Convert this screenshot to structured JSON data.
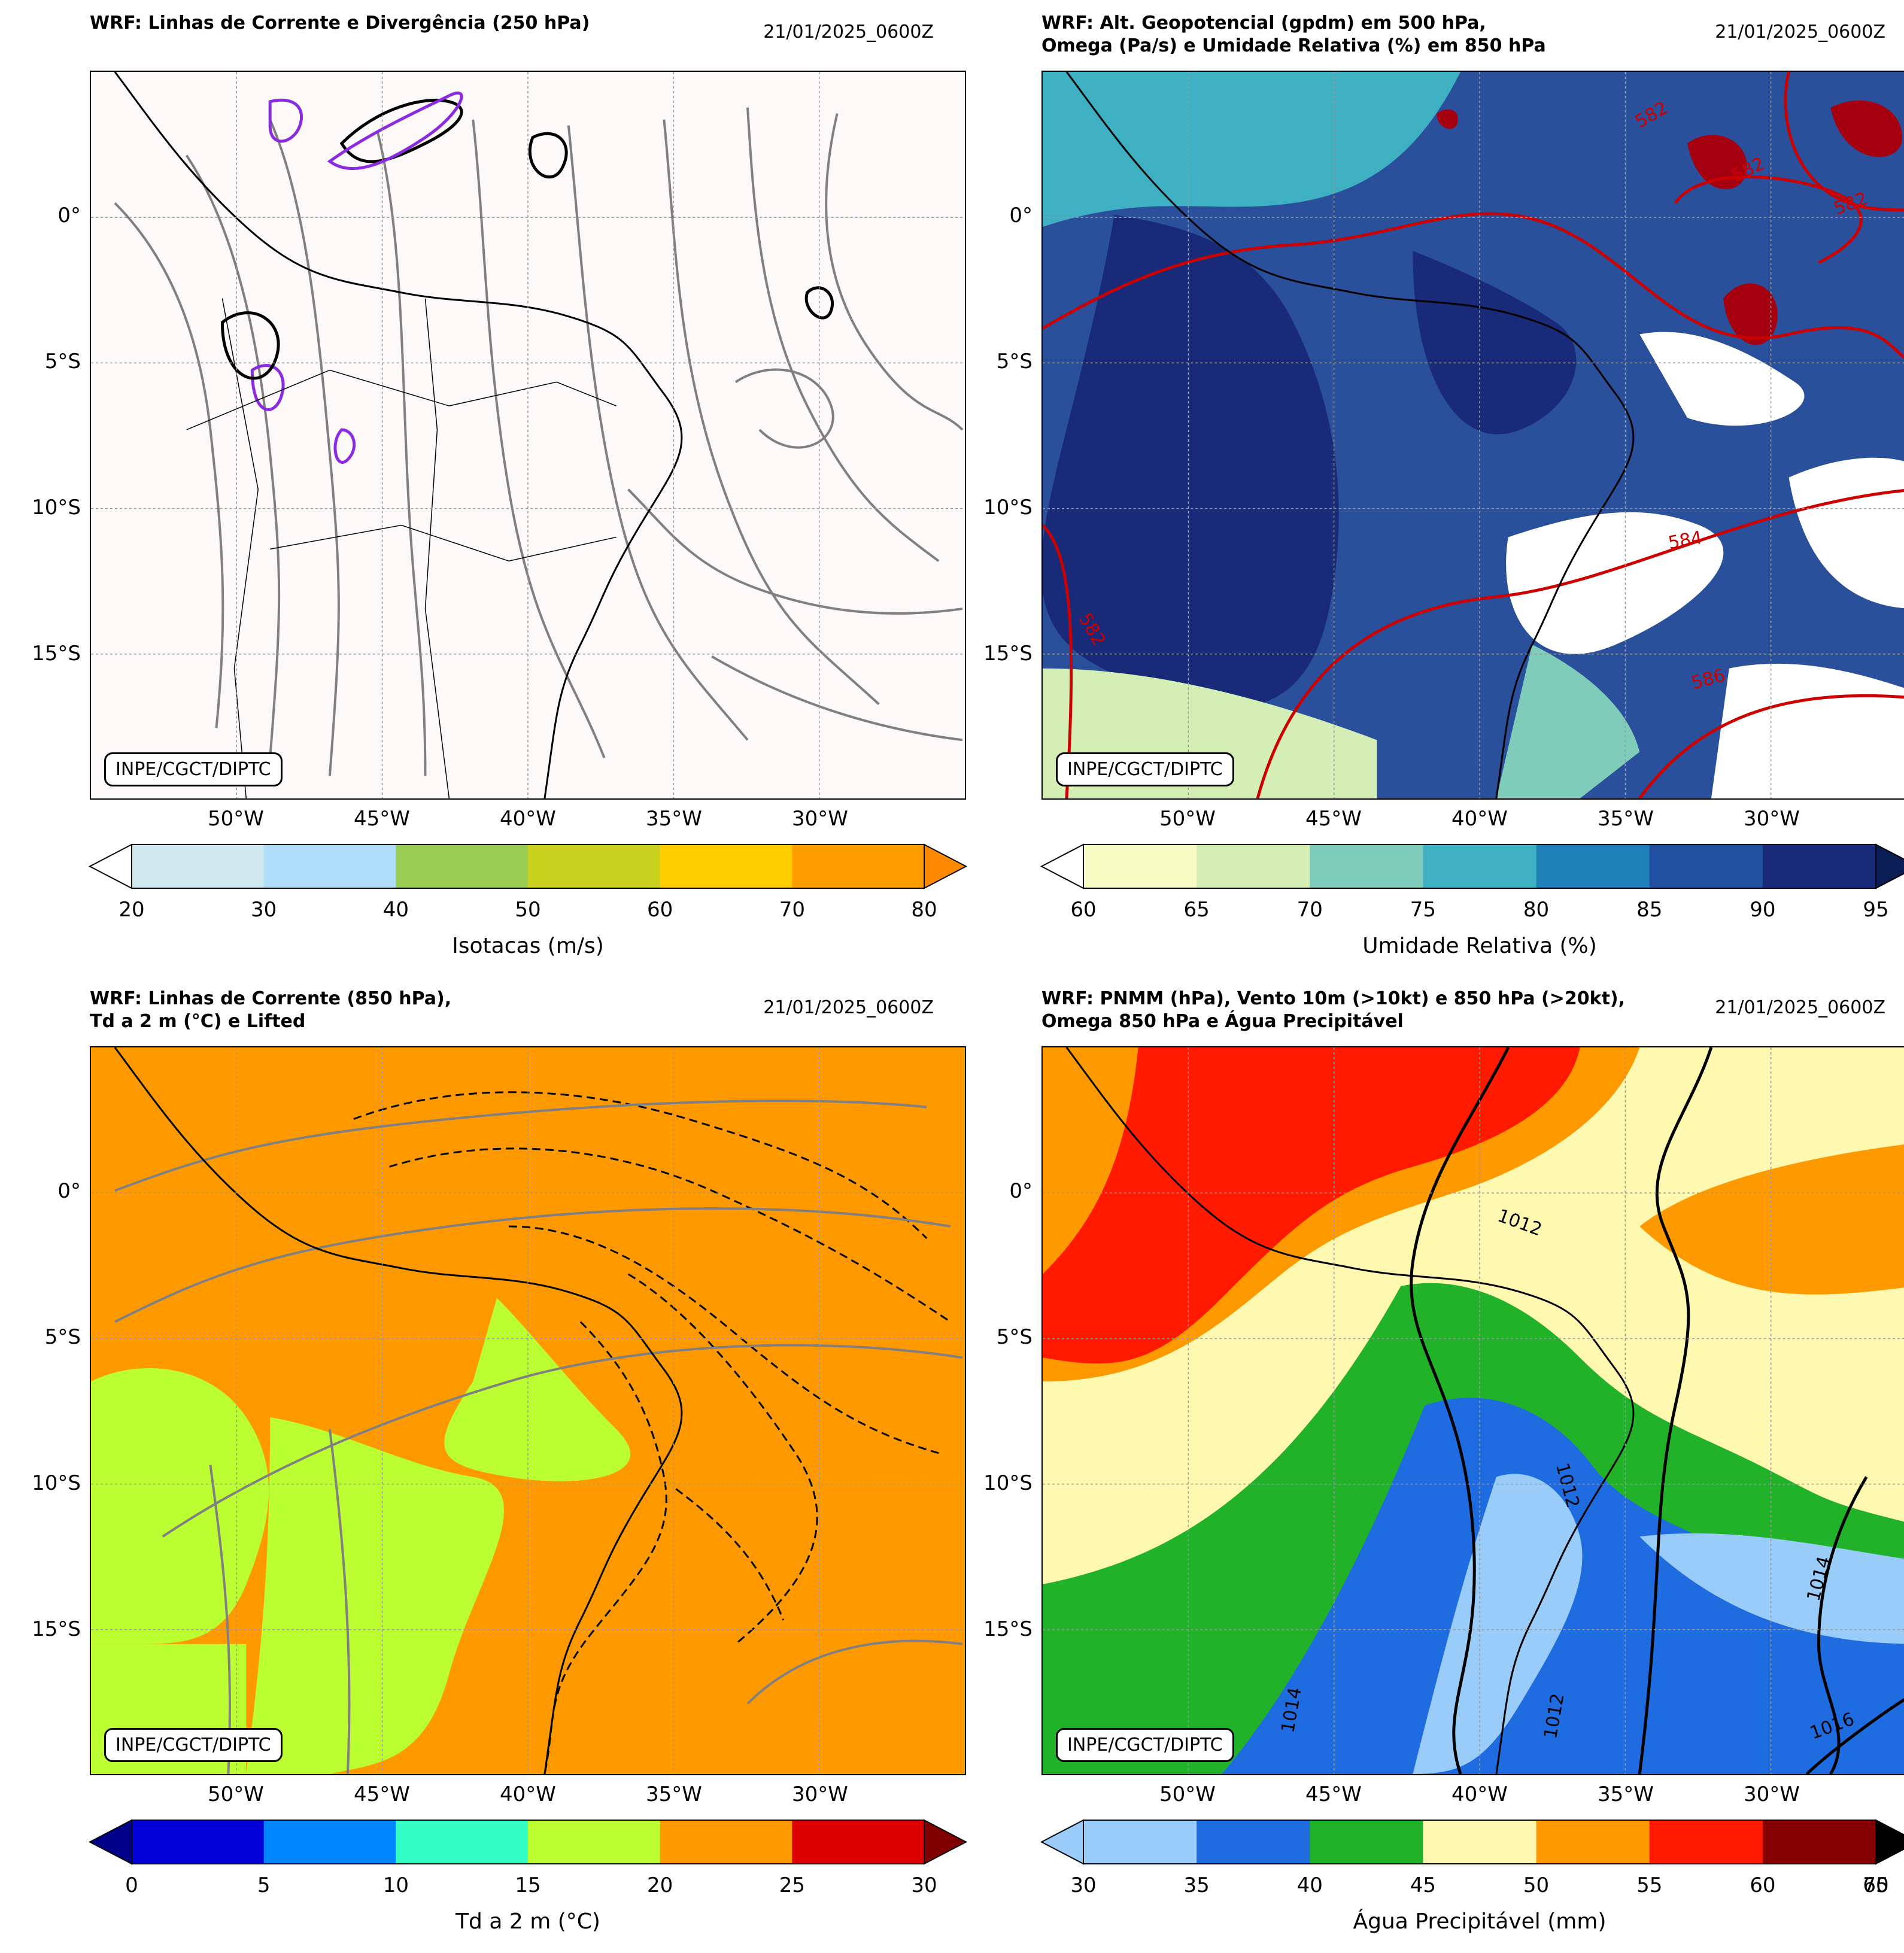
{
  "panels": [
    {
      "title": "WRF: Linhas de Corrente e Divergência (250 hPa)",
      "date": "21/01/2025_0600Z",
      "badge": "INPE/CGCT/DIPTC",
      "bg": "#fcf9f8",
      "colorbar_label": "Isotacas (m/s)",
      "colorbar_ticks": [
        "20",
        "30",
        "40",
        "50",
        "60",
        "70",
        "80"
      ],
      "colorbar_colors": [
        "#d1e9ee",
        "#b0ddfa",
        "#99cc55",
        "#c8d21f",
        "#ffcd00",
        "#ff9c00"
      ],
      "colorbar_extend_low": "#ffffff",
      "colorbar_extend_high": "#ff8a00"
    },
    {
      "title": "WRF: Alt. Geopotencial (gpdm) em 500 hPa,\nOmega (Pa/s) e Umidade Relativa (%) em 850 hPa",
      "date": "21/01/2025_0600Z",
      "badge": "INPE/CGCT/DIPTC",
      "bg": "#2a4f9b",
      "colorbar_label": "Umidade Relativa (%)",
      "colorbar_ticks": [
        "60",
        "65",
        "70",
        "75",
        "80",
        "85",
        "90",
        "95"
      ],
      "colorbar_colors": [
        "#f7fcc5",
        "#d4eeb6",
        "#80ccba",
        "#3eb0c2",
        "#1f80b8",
        "#2250a0",
        "#192b78"
      ],
      "colorbar_extend_low": "#ffffff",
      "colorbar_extend_high": "#0c1c55",
      "contour_labels": [
        "582",
        "582",
        "582",
        "584",
        "586",
        "582"
      ]
    },
    {
      "title": "WRF: Linhas de Corrente (850 hPa),\nTd a 2 m (°C) e Lifted",
      "date": "21/01/2025_0600Z",
      "badge": "INPE/CGCT/DIPTC",
      "bg": "#ff9900",
      "colorbar_label": "Td a 2 m (°C)",
      "colorbar_ticks": [
        "0",
        "5",
        "10",
        "15",
        "20",
        "25",
        "30"
      ],
      "colorbar_colors": [
        "#0000d6",
        "#0087ff",
        "#33ffc4",
        "#bbff33",
        "#ff9900",
        "#dd0000"
      ],
      "colorbar_extend_low": "#000088",
      "colorbar_extend_high": "#800000"
    },
    {
      "title": "WRF: PNMM (hPa), Vento 10m (>10kt) e 850 hPa (>20kt),\nOmega 850 hPa e Água Precipitável",
      "date": "21/01/2025_0600Z",
      "badge": "INPE/CGCT/DIPTC",
      "bg": "#fff8b0",
      "colorbar_label": "Água Precipitável (mm)",
      "colorbar_ticks": [
        "30",
        "35",
        "40",
        "45",
        "50",
        "55",
        "60",
        "65"
      ],
      "colorbar_last_tick": "70",
      "colorbar_colors": [
        "#99ccf8",
        "#1f6ce0",
        "#22b22a",
        "#fff8b0",
        "#ff9900",
        "#ff1a00",
        "#850000"
      ],
      "colorbar_extend_low": "#99ccf8",
      "colorbar_extend_high": "#000000",
      "contour_labels": [
        "1012",
        "1014",
        "1016",
        "1012",
        "1014",
        "1012"
      ]
    }
  ],
  "axes": {
    "lat_labels": [
      "0°",
      "5°S",
      "10°S",
      "15°S"
    ],
    "lon_labels": [
      "50°W",
      "45°W",
      "40°W",
      "35°W",
      "30°W"
    ]
  }
}
